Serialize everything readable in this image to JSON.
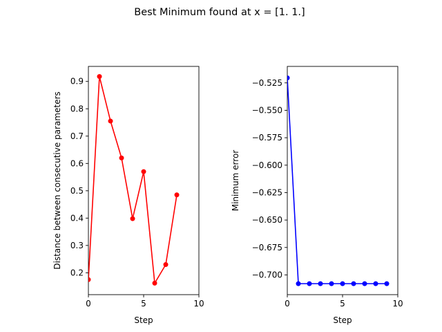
{
  "figure": {
    "suptitle": "Best Minimum found at x =  [1. 1.]"
  },
  "chart_data": [
    {
      "type": "line",
      "xlabel": "Step",
      "ylabel": "Distance between consecutive parameters",
      "xlim": [
        0,
        10
      ],
      "ylim": [
        0.12,
        0.955
      ],
      "xticks": [
        0,
        5,
        10
      ],
      "xtick_labels": [
        "0",
        "5",
        "10"
      ],
      "yticks": [
        0.2,
        0.3,
        0.4,
        0.5,
        0.6,
        0.7,
        0.8,
        0.9
      ],
      "ytick_labels": [
        "0.2",
        "0.3",
        "0.4",
        "0.5",
        "0.6",
        "0.7",
        "0.8",
        "0.9"
      ],
      "grid": false,
      "color": "#ff0000",
      "marker": "circle",
      "x": [
        0,
        1,
        2,
        3,
        4,
        5,
        6,
        7,
        8
      ],
      "y": [
        0.175,
        0.918,
        0.755,
        0.62,
        0.398,
        0.57,
        0.162,
        0.23,
        0.485
      ]
    },
    {
      "type": "line",
      "xlabel": "Step",
      "ylabel": "Minimum error",
      "xlim": [
        0,
        10
      ],
      "ylim": [
        -0.718,
        -0.51
      ],
      "xticks": [
        0,
        5,
        10
      ],
      "xtick_labels": [
        "0",
        "5",
        "10"
      ],
      "yticks": [
        -0.525,
        -0.55,
        -0.575,
        -0.6,
        -0.625,
        -0.65,
        -0.675,
        -0.7
      ],
      "ytick_labels": [
        "−0.525",
        "−0.550",
        "−0.575",
        "−0.600",
        "−0.625",
        "−0.650",
        "−0.675",
        "−0.700"
      ],
      "grid": false,
      "color": "#0000ff",
      "marker": "circle",
      "x": [
        0,
        1,
        2,
        3,
        4,
        5,
        6,
        7,
        8,
        9
      ],
      "y": [
        -0.5205,
        -0.708,
        -0.708,
        -0.708,
        -0.708,
        -0.708,
        -0.708,
        -0.708,
        -0.708,
        -0.708
      ]
    }
  ]
}
